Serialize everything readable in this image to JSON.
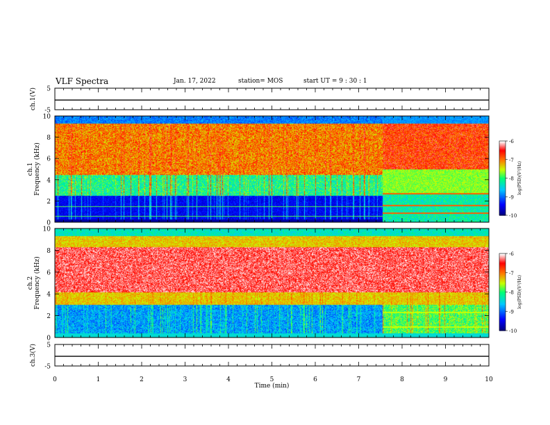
{
  "header": {
    "title": "VLF Spectra",
    "date": "Jan. 17, 2022",
    "station": "station= MOS",
    "start": "start  UT  =   9  : 30 : 1"
  },
  "chart_data": [
    {
      "type": "line",
      "name": "ch1-waveform",
      "ylabel": "ch.1(V)",
      "ylim": [
        -5,
        5
      ],
      "yticks": [
        "5",
        "-5"
      ],
      "x": [
        0,
        10
      ],
      "values": [
        -0.5,
        -0.5
      ]
    },
    {
      "type": "heatmap",
      "name": "ch1-spectrogram",
      "ylabel_line1": "ch.1",
      "ylabel_line2": "Frequency (kHz)",
      "ylim": [
        0,
        10
      ],
      "yticks": [
        "0",
        "2",
        "4",
        "6",
        "8",
        "10"
      ],
      "xlim": [
        0,
        10
      ],
      "colorbar": {
        "label": "log(PSD)(V²/Hz)",
        "range": [
          -10,
          -6
        ],
        "ticks": [
          "-6",
          "-7",
          "-8",
          "-9",
          "-10"
        ]
      },
      "regime_change_min": 7.55
    },
    {
      "type": "heatmap",
      "name": "ch2-spectrogram",
      "ylabel_line1": "ch.2",
      "ylabel_line2": "Frequency (kHz)",
      "ylim": [
        0,
        10
      ],
      "yticks": [
        "0",
        "2",
        "4",
        "6",
        "8",
        "10"
      ],
      "xlim": [
        0,
        10
      ],
      "colorbar": {
        "label": "log(PSD)(V²/Hz)",
        "range": [
          -10,
          -6
        ],
        "ticks": [
          "-6",
          "-7",
          "-8",
          "-9",
          "-10"
        ]
      },
      "regime_change_min": 7.55
    },
    {
      "type": "line",
      "name": "ch3-waveform",
      "ylabel": "ch.3(V)",
      "ylim": [
        -5,
        5
      ],
      "yticks": [
        "5",
        "-5"
      ],
      "x": [
        0,
        10
      ],
      "values": [
        -0.5,
        -0.5
      ]
    }
  ],
  "xaxis": {
    "label": "Time (min)",
    "ticks": [
      "0",
      "1",
      "2",
      "3",
      "4",
      "5",
      "6",
      "7",
      "8",
      "9",
      "10"
    ],
    "range": [
      0,
      10
    ]
  }
}
